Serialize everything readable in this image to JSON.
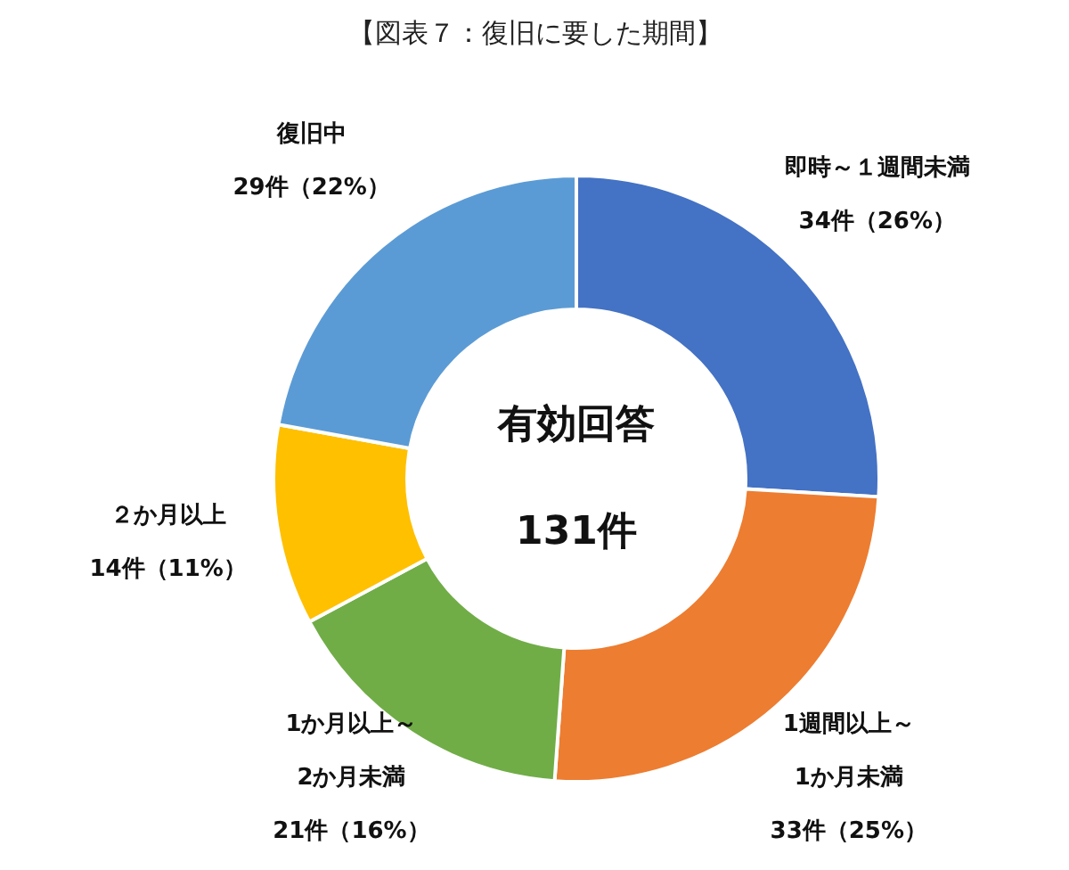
{
  "chart_data": {
    "type": "donut",
    "title": "【図表７：復旧に要した期間】",
    "categories": [
      "即時～１週間未満",
      "1週間以上～\n1か月未満",
      "1か月以上～\n2か月未満",
      "２か月以上",
      "復旧中"
    ],
    "values": [
      34,
      33,
      21,
      14,
      29
    ],
    "value_labels": [
      "34件（26%）",
      "33件（25%）",
      "21件（16%）",
      "14件（11%）",
      "29件（22%）"
    ],
    "colors": [
      "#4472c4",
      "#ed7d31",
      "#70ad47",
      "#ffc000",
      "#5b9bd5"
    ],
    "annotations": [
      "有効回答",
      "131件"
    ]
  }
}
